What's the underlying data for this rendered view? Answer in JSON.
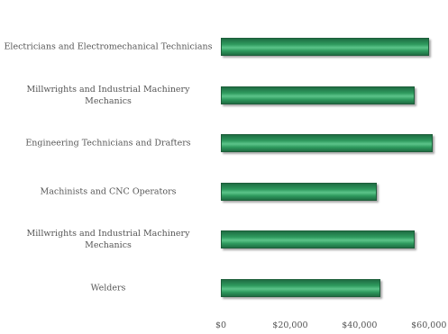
{
  "chart_data": {
    "type": "barh",
    "categories": [
      "Electricians and Electromechanical Technicians",
      "Millwrights and Industrial Machinery Mechanics",
      "Engineering Technicians and Drafters",
      "Machinists and CNC Operators",
      "Millwrights and Industrial Machinery Mechanics",
      "Welders"
    ],
    "values": [
      60000,
      56000,
      61000,
      45000,
      56000,
      46000
    ],
    "color": "#2e9a5e",
    "xlim": [
      0,
      65000
    ],
    "xticks": [
      {
        "value": 0,
        "label": "$0"
      },
      {
        "value": 20000,
        "label": "$20,000"
      },
      {
        "value": 40000,
        "label": "$40,000"
      },
      {
        "value": 60000,
        "label": "$60,000"
      }
    ]
  }
}
